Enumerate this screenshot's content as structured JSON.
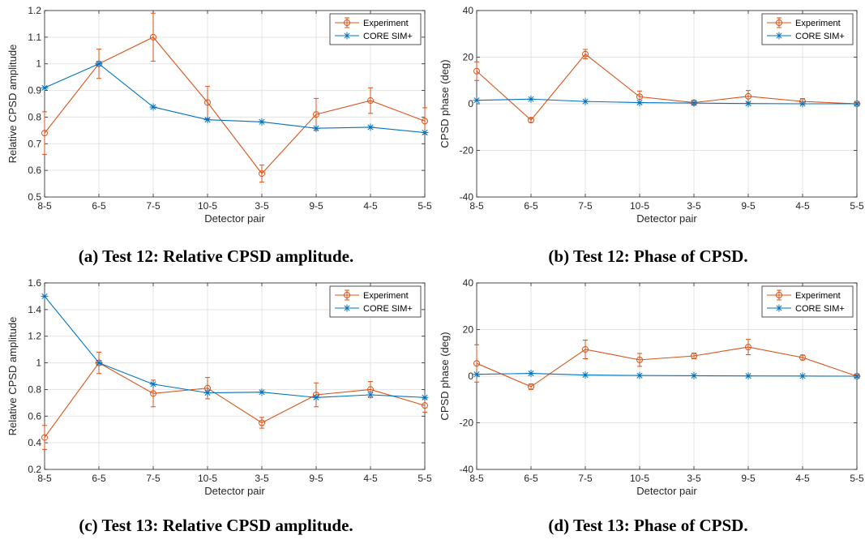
{
  "colors": {
    "experiment": "#D95319",
    "simulation": "#0072BD",
    "grid": "#e3e3e3",
    "axis": "#262626"
  },
  "chart_data": [
    {
      "type": "line",
      "ylabel": "Relative CPSD amplitude",
      "xlabel": "Detector pair",
      "categories": [
        "8-5",
        "6-5",
        "7-5",
        "10-5",
        "3-5",
        "9-5",
        "4-5",
        "5-5"
      ],
      "ylim": [
        0.5,
        1.2
      ],
      "yticks": [
        "0.5",
        "0.6",
        "0.7",
        "0.8",
        "0.9",
        "1",
        "1.1",
        "1.2"
      ],
      "grid": true,
      "legend_position": "top-right",
      "series": [
        {
          "name": "Experiment",
          "marker": "circle",
          "values": [
            0.74,
            1.0,
            1.1,
            0.855,
            0.588,
            0.81,
            0.862,
            0.785
          ],
          "errors": [
            0.08,
            0.055,
            0.09,
            0.06,
            0.032,
            0.06,
            0.048,
            0.05
          ]
        },
        {
          "name": "CORE SIM+",
          "marker": "star",
          "values": [
            0.91,
            1.0,
            0.838,
            0.79,
            0.782,
            0.758,
            0.762,
            0.742
          ]
        }
      ],
      "caption": "(a) Test 12: Relative CPSD amplitude."
    },
    {
      "type": "line",
      "ylabel": "CPSD phase (deg)",
      "xlabel": "Detector pair",
      "categories": [
        "8-5",
        "6-5",
        "7-5",
        "10-5",
        "3-5",
        "9-5",
        "4-5",
        "5-5"
      ],
      "ylim": [
        -40,
        40
      ],
      "yticks": [
        "-40",
        "-20",
        "0",
        "20",
        "40"
      ],
      "grid": true,
      "legend_position": "top-right",
      "series": [
        {
          "name": "Experiment",
          "marker": "circle",
          "values": [
            14,
            -7,
            21.3,
            3,
            0.5,
            3.2,
            1,
            0
          ],
          "errors": [
            4,
            1,
            2,
            2.5,
            1,
            2.5,
            1.2,
            0.5
          ]
        },
        {
          "name": "CORE SIM+",
          "marker": "star",
          "values": [
            1.5,
            2,
            1,
            0.5,
            0.3,
            0.1,
            0,
            0
          ]
        }
      ],
      "caption": "(b) Test 12: Phase of CPSD."
    },
    {
      "type": "line",
      "ylabel": "Relative CPSD amplitude",
      "xlabel": "Detector pair",
      "categories": [
        "8-5",
        "6-5",
        "7-5",
        "10-5",
        "3-5",
        "9-5",
        "4-5",
        "5-5"
      ],
      "ylim": [
        0.2,
        1.6
      ],
      "yticks": [
        "0.2",
        "0.4",
        "0.6",
        "0.8",
        "1",
        "1.2",
        "1.4",
        "1.6"
      ],
      "grid": true,
      "legend_position": "top-right",
      "series": [
        {
          "name": "Experiment",
          "marker": "circle",
          "values": [
            0.44,
            1.0,
            0.77,
            0.81,
            0.55,
            0.76,
            0.8,
            0.68
          ],
          "errors": [
            0.09,
            0.08,
            0.1,
            0.08,
            0.04,
            0.09,
            0.06,
            0.05
          ]
        },
        {
          "name": "CORE SIM+",
          "marker": "star",
          "values": [
            1.5,
            1.0,
            0.84,
            0.775,
            0.78,
            0.74,
            0.76,
            0.74
          ]
        }
      ],
      "caption": "(c) Test 13: Relative CPSD amplitude."
    },
    {
      "type": "line",
      "ylabel": "CPSD phase (deg)",
      "xlabel": "Detector pair",
      "categories": [
        "8-5",
        "6-5",
        "7-5",
        "10-5",
        "3-5",
        "9-5",
        "4-5",
        "5-5"
      ],
      "ylim": [
        -40,
        40
      ],
      "yticks": [
        "-40",
        "-20",
        "0",
        "20",
        "40"
      ],
      "grid": true,
      "legend_position": "top-right",
      "series": [
        {
          "name": "Experiment",
          "marker": "circle",
          "values": [
            5.5,
            -4.5,
            11.5,
            7,
            8.7,
            12.5,
            8,
            0
          ],
          "errors": [
            8,
            1.2,
            4,
            2.8,
            1.2,
            3.3,
            1,
            0.5
          ]
        },
        {
          "name": "CORE SIM+",
          "marker": "star",
          "values": [
            0.8,
            1.2,
            0.5,
            0.3,
            0.2,
            0.1,
            0.05,
            0
          ]
        }
      ],
      "caption": "(d) Test 13: Phase of CPSD."
    }
  ]
}
